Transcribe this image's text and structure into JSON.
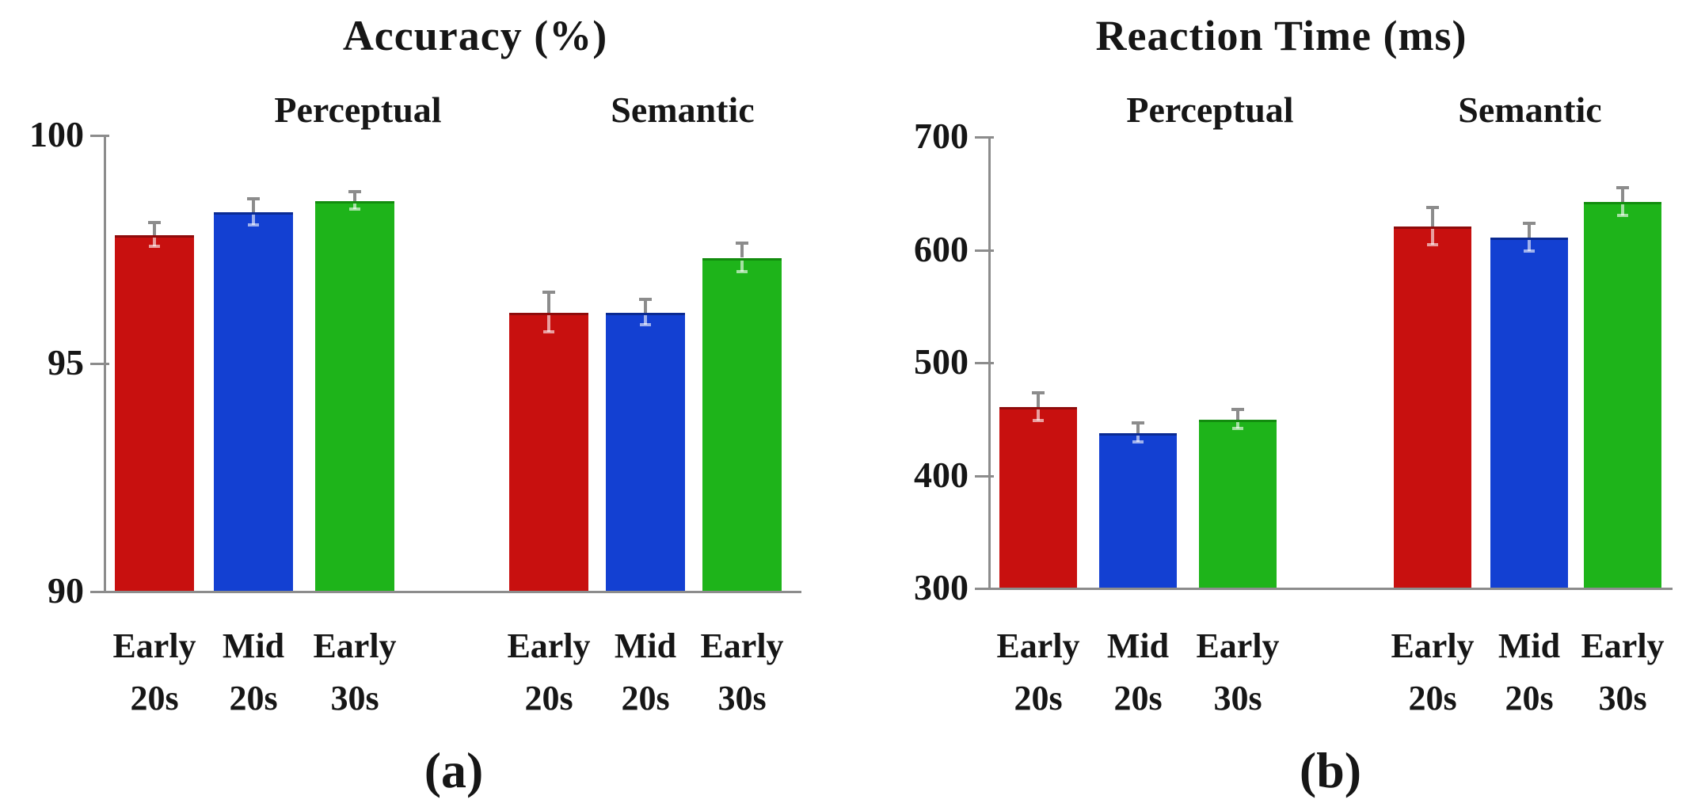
{
  "figure": {
    "background": "#ffffff",
    "axis_color": "#8c8c8c",
    "error_bar_color": "#8c8c8c",
    "text_color": "#161616",
    "bar_colors": {
      "red": {
        "fill": "#c8100f",
        "edge": "#8f0b0b"
      },
      "blue": {
        "fill": "#1340d2",
        "edge": "#0a2a92"
      },
      "green": {
        "fill": "#1eb41a",
        "edge": "#128c0e"
      }
    }
  },
  "chart_data": [
    {
      "type": "bar",
      "title": "Accuracy (%)",
      "panel_label": "(a)",
      "ylabel": "",
      "ylim": [
        90,
        100
      ],
      "yticks": [
        100,
        95,
        90
      ],
      "grid": false,
      "legend": false,
      "groups": [
        {
          "name": "Perceptual",
          "bars": [
            {
              "label": "Early 20s",
              "value": 97.8,
              "error": 0.25,
              "color": "red"
            },
            {
              "label": "Mid 20s",
              "value": 98.3,
              "error": 0.28,
              "color": "blue"
            },
            {
              "label": "Early 30s",
              "value": 98.55,
              "error": 0.18,
              "color": "green"
            }
          ]
        },
        {
          "name": "Semantic",
          "bars": [
            {
              "label": "Early 20s",
              "value": 96.1,
              "error": 0.42,
              "color": "red"
            },
            {
              "label": "Mid 20s",
              "value": 96.1,
              "error": 0.27,
              "color": "blue"
            },
            {
              "label": "Early 30s",
              "value": 97.3,
              "error": 0.3,
              "color": "green"
            }
          ]
        }
      ]
    },
    {
      "type": "bar",
      "title": "Reaction Time (ms)",
      "panel_label": "(b)",
      "ylabel": "",
      "ylim": [
        300,
        700
      ],
      "yticks": [
        700,
        600,
        500,
        400,
        300
      ],
      "grid": false,
      "legend": false,
      "groups": [
        {
          "name": "Perceptual",
          "bars": [
            {
              "label": "Early 20s",
              "value": 460,
              "error": 12,
              "color": "red"
            },
            {
              "label": "Mid 20s",
              "value": 437,
              "error": 8,
              "color": "blue"
            },
            {
              "label": "Early 30s",
              "value": 449,
              "error": 8,
              "color": "green"
            }
          ]
        },
        {
          "name": "Semantic",
          "bars": [
            {
              "label": "Early 20s",
              "value": 620,
              "error": 16,
              "color": "red"
            },
            {
              "label": "Mid 20s",
              "value": 610,
              "error": 12,
              "color": "blue"
            },
            {
              "label": "Early 30s",
              "value": 642,
              "error": 12,
              "color": "green"
            }
          ]
        }
      ]
    }
  ]
}
